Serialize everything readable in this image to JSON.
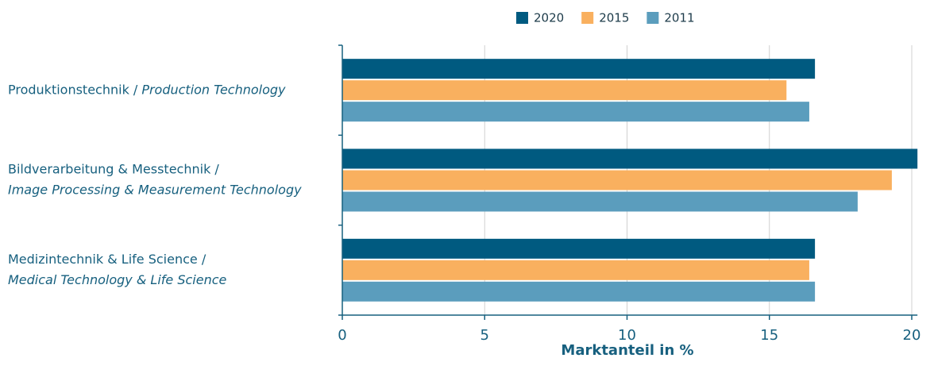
{
  "chart_data": {
    "type": "bar",
    "orientation": "horizontal",
    "categories": [
      {
        "de": "Produktionstechnik /",
        "en": "Production Technology"
      },
      {
        "de": "Bildverarbeitung & Messtechnik /",
        "en": "Image Processing & Measurement Technology"
      },
      {
        "de": "Medizintechnik & Life Science /",
        "en": "Medical Technology & Life Science"
      }
    ],
    "series": [
      {
        "name": "2020",
        "color": "#005a80",
        "values": [
          16.6,
          20.2,
          16.6
        ]
      },
      {
        "name": "2015",
        "color": "#f9b05f",
        "values": [
          15.6,
          19.3,
          16.4
        ]
      },
      {
        "name": "2011",
        "color": "#5b9dbd",
        "values": [
          16.4,
          18.1,
          16.6
        ]
      }
    ],
    "xlim": [
      0,
      20.2
    ],
    "xticks": [
      0,
      5,
      10,
      15,
      20
    ],
    "grid": true,
    "xlabel": "Marktanteil in %",
    "legend": "top"
  }
}
